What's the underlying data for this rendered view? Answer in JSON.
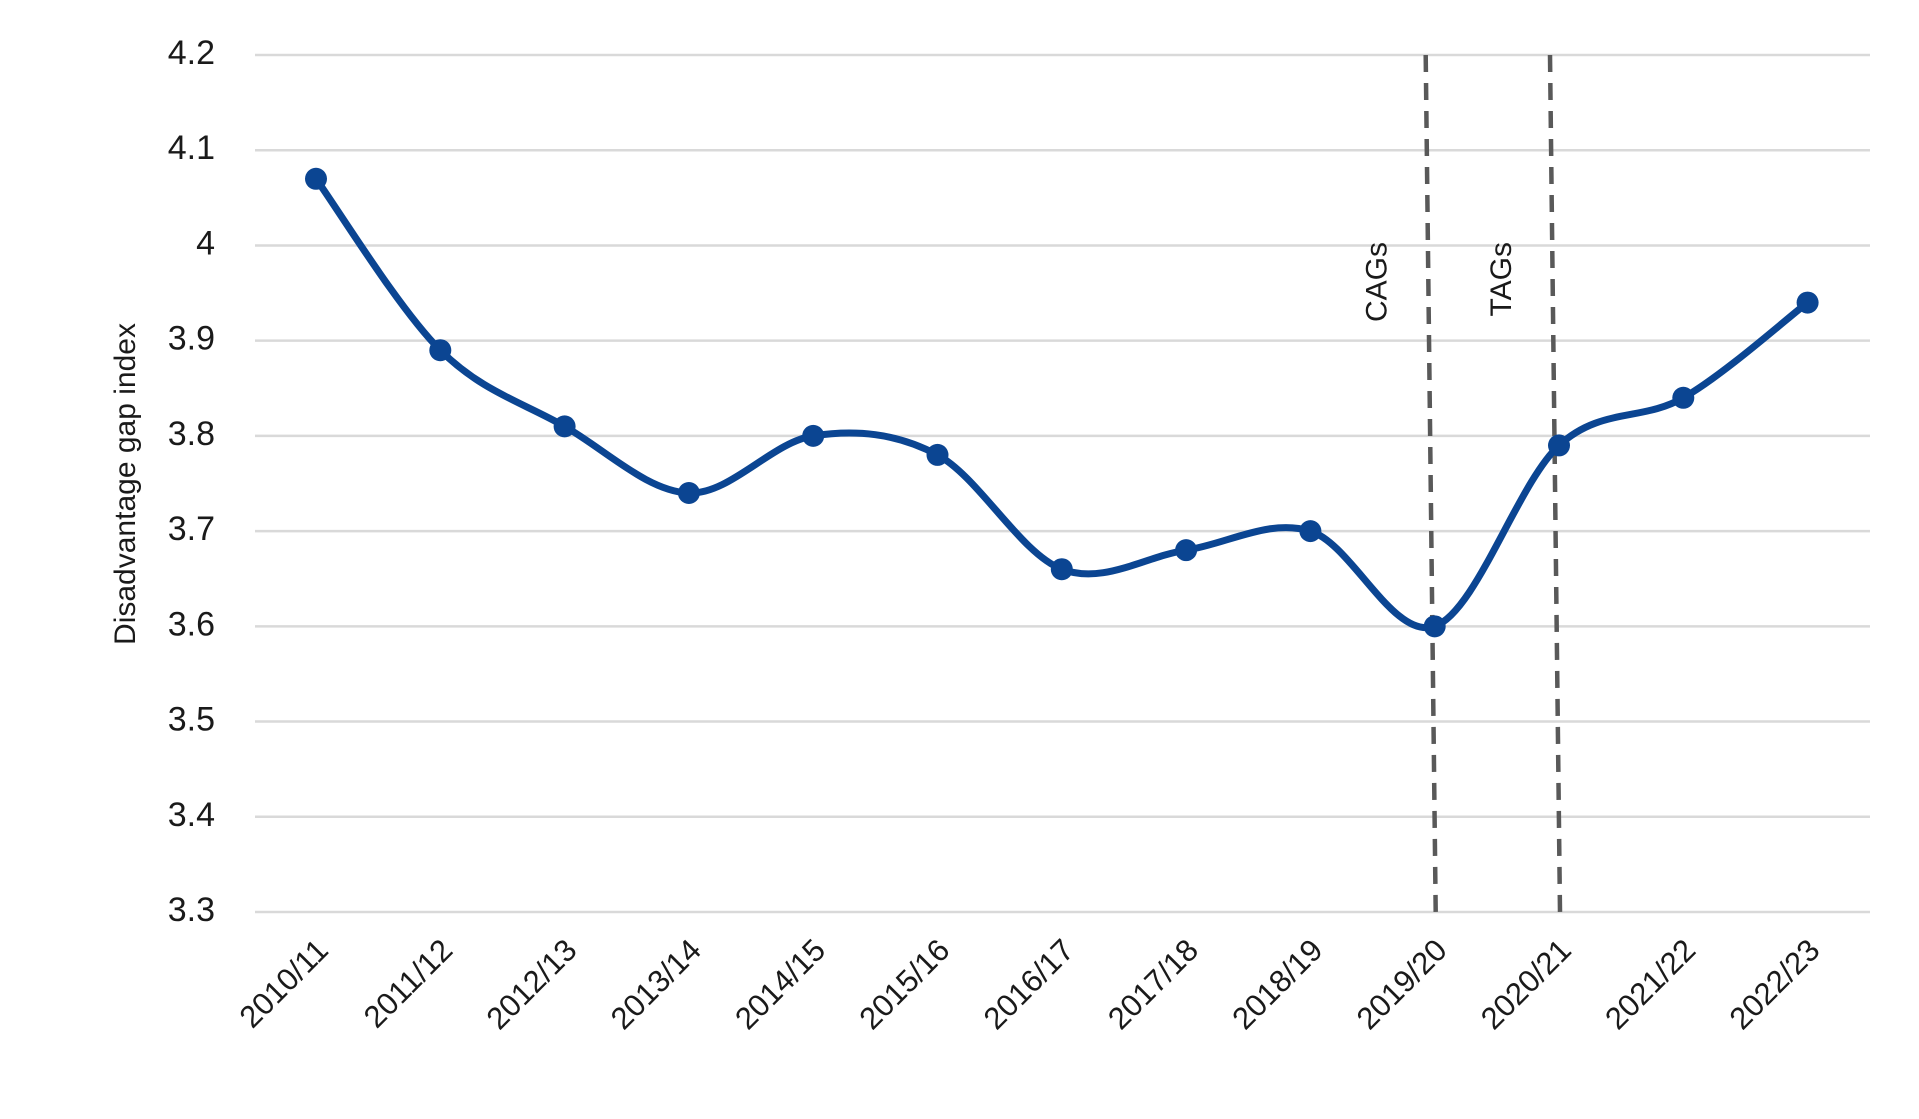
{
  "chart_data": {
    "type": "line",
    "y_axis_label": "Disadvantage gap index",
    "categories": [
      "2010/11",
      "2011/12",
      "2012/13",
      "2013/14",
      "2014/15",
      "2015/16",
      "2016/17",
      "2017/18",
      "2018/19",
      "2019/20",
      "2020/21",
      "2021/22",
      "2022/23"
    ],
    "series": [
      {
        "name": "Disadvantage gap index",
        "color": "#0b4592",
        "values": [
          4.07,
          3.89,
          3.81,
          3.74,
          3.8,
          3.78,
          3.66,
          3.68,
          3.7,
          3.6,
          3.79,
          3.84,
          3.94
        ]
      }
    ],
    "ylim": [
      3.3,
      4.2
    ],
    "yticks": [
      3.3,
      3.4,
      3.5,
      3.6,
      3.7,
      3.8,
      3.9,
      4,
      4.1,
      4.2
    ],
    "grid": true,
    "annotations": [
      {
        "label": "CAGs",
        "x": "2019/20"
      },
      {
        "label": "TAGs",
        "x": "2020/21"
      }
    ]
  }
}
